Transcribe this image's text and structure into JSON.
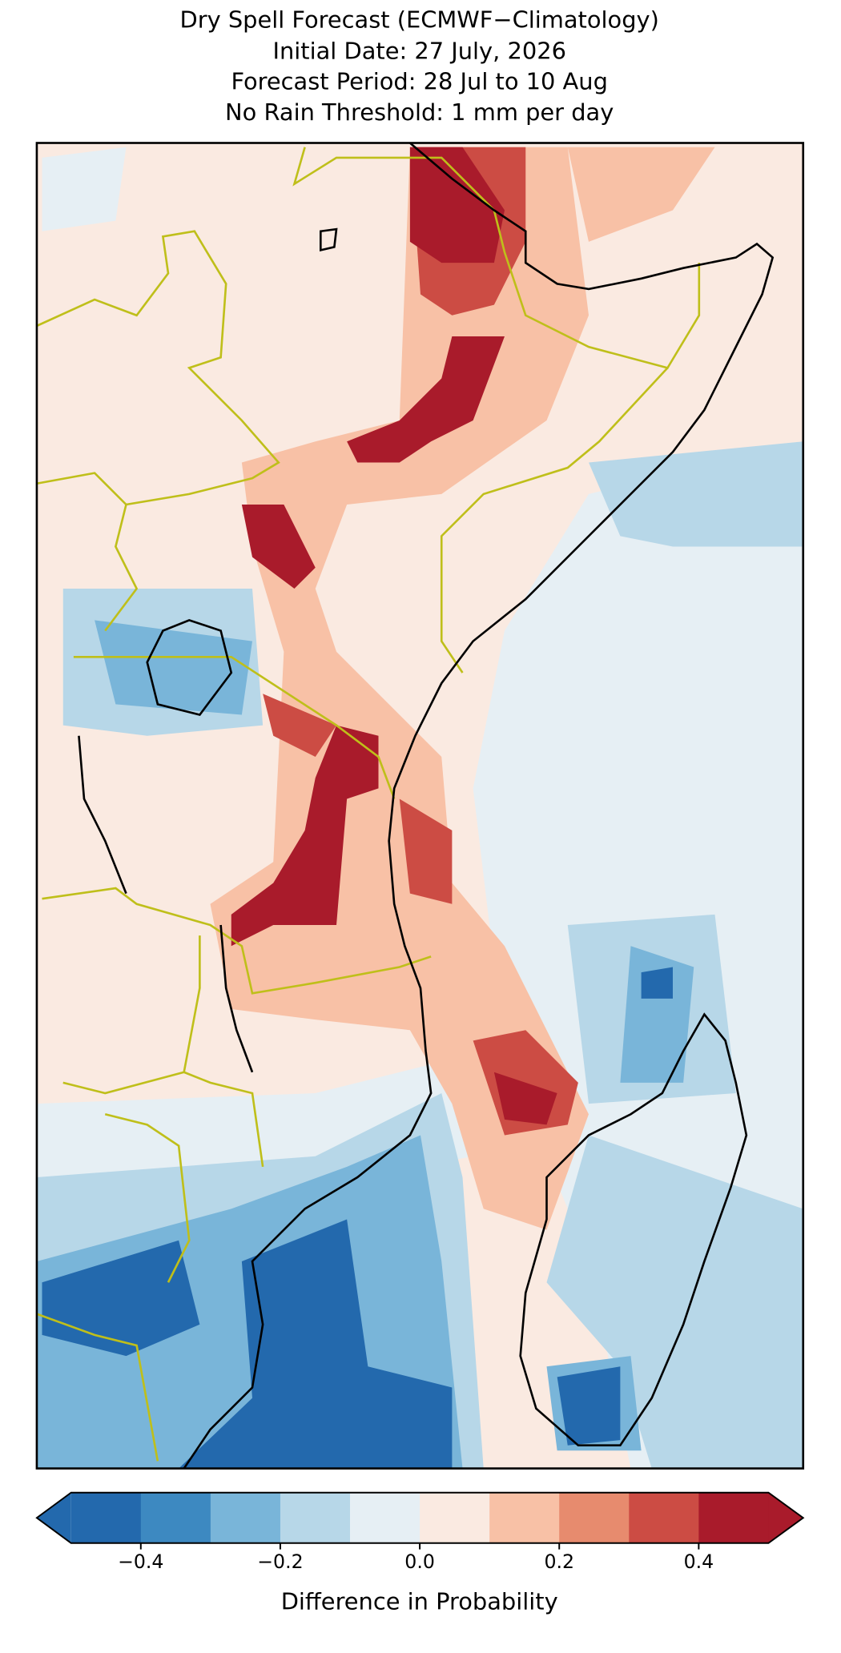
{
  "title": [
    "Dry Spell Forecast (ECMWF−Climatology)",
    "Initial Date: 27 July, 2026",
    "Forecast Period: 28 Jul to 10 Aug",
    "No Rain Threshold: 1 mm per day"
  ],
  "colorbar": {
    "label": "Difference in Probability",
    "extend": "both",
    "levels": [
      -0.5,
      -0.4,
      -0.3,
      -0.2,
      -0.1,
      0,
      0.1,
      0.2,
      0.3,
      0.4,
      0.5
    ],
    "colors": [
      "#2369ad",
      "#3d89c1",
      "#79b5d9",
      "#b7d7e8",
      "#e6eff4",
      "#faeae1",
      "#f8c1a6",
      "#e78b6e",
      "#cc4c44",
      "#a91b2b"
    ],
    "ticks": [
      {
        "value": -0.4,
        "label": "−0.4"
      },
      {
        "value": -0.2,
        "label": "−0.2"
      },
      {
        "value": 0,
        "label": "0.0"
      },
      0.2,
      0.4
    ]
  }
}
